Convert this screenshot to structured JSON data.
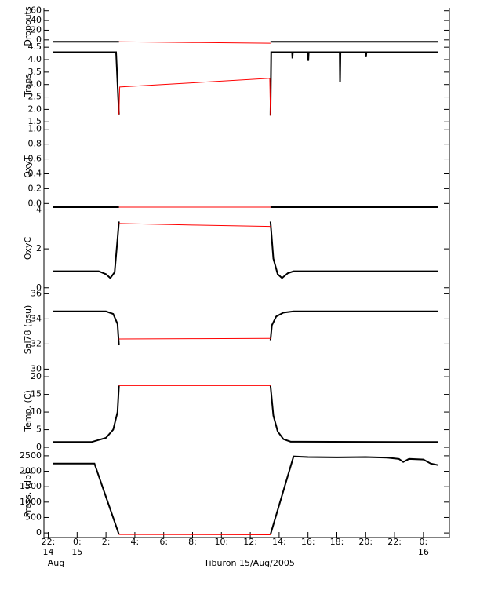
{
  "chart_data": [
    {
      "type": "line",
      "ylabel": "Dropouts",
      "xlim": [
        -2.3,
        25.8
      ],
      "ylim": [
        -10,
        66
      ],
      "yticks": [
        0,
        20,
        40,
        60
      ],
      "x": [
        -1.7,
        2.9,
        8,
        13.4,
        25
      ],
      "series": [
        {
          "color": "#000000",
          "values": [
            -4,
            -4,
            null,
            -4,
            -4
          ]
        },
        {
          "color": "#ff0000",
          "values": [
            null,
            -4,
            -5.5,
            -7,
            null
          ]
        }
      ]
    },
    {
      "type": "line",
      "ylabel": "Trans",
      "xlim": [
        -2.3,
        25.8
      ],
      "ylim": [
        1.35,
        4.6
      ],
      "yticks": [
        1.5,
        {
          "value": 2,
          "label": "2.0"
        },
        2.5,
        {
          "value": 3,
          "label": "3.0"
        },
        3.5,
        {
          "value": 4,
          "label": "4.0"
        },
        4.5
      ],
      "x": [
        -1.7,
        2.7,
        2.9,
        2.95,
        13.35,
        13.4,
        13.45,
        14.9,
        14.92,
        14.95,
        16.0,
        16.02,
        16.05,
        18.2,
        18.22,
        18.25,
        20.0,
        20.02,
        20.05,
        25
      ],
      "series": [
        {
          "color": "#000000",
          "values": [
            4.3,
            4.3,
            1.8,
            null,
            null,
            1.75,
            4.3,
            4.3,
            4.05,
            4.3,
            4.3,
            3.95,
            4.3,
            4.3,
            3.1,
            4.3,
            4.3,
            4.1,
            4.3,
            4.3
          ]
        },
        {
          "color": "#ff0000",
          "values": [
            null,
            null,
            1.8,
            2.9,
            3.25,
            1.75,
            null,
            null,
            null,
            null,
            null,
            null,
            null,
            null,
            null,
            null,
            null,
            null,
            null,
            null
          ]
        }
      ]
    },
    {
      "type": "line",
      "ylabel": "OxyT",
      "xlim": [
        -2.3,
        25.8
      ],
      "ylim": [
        -0.06,
        1.05
      ],
      "yticks": [
        {
          "value": 0,
          "label": "0.0"
        },
        0.2,
        0.4,
        0.6,
        0.8,
        {
          "value": 1,
          "label": "1.0"
        }
      ],
      "x": [
        -1.7,
        2.9,
        8,
        13.4,
        25
      ],
      "series": [
        {
          "color": "#000000",
          "values": [
            -0.05,
            -0.05,
            null,
            -0.05,
            -0.05
          ]
        },
        {
          "color": "#ff0000",
          "values": [
            null,
            -0.05,
            -0.05,
            -0.05,
            null
          ]
        }
      ]
    },
    {
      "type": "line",
      "ylabel": "OxyC",
      "xlim": [
        -2.3,
        25.8
      ],
      "ylim": [
        -0.05,
        4.1
      ],
      "yticks": [
        0,
        2,
        4
      ],
      "x": [
        -1.7,
        1.5,
        2.0,
        2.3,
        2.6,
        2.8,
        2.9,
        8,
        13.4,
        13.6,
        13.9,
        14.2,
        14.6,
        15.0,
        25
      ],
      "series": [
        {
          "color": "#000000",
          "values": [
            0.85,
            0.85,
            0.7,
            0.5,
            0.8,
            2.5,
            3.4,
            null,
            3.4,
            1.5,
            0.7,
            0.5,
            0.75,
            0.85,
            0.85
          ]
        },
        {
          "color": "#ff0000",
          "values": [
            null,
            null,
            null,
            null,
            null,
            null,
            3.3,
            3.22,
            3.15,
            null,
            null,
            null,
            null,
            null,
            null
          ]
        }
      ]
    },
    {
      "type": "line",
      "ylabel": "Sal78 (psu)",
      "xlim": [
        -2.3,
        25.8
      ],
      "ylim": [
        29.9,
        36.4
      ],
      "yticks": [
        30,
        32,
        34,
        36
      ],
      "x": [
        -1.7,
        2.0,
        2.5,
        2.8,
        2.9,
        8,
        13.4,
        13.5,
        13.8,
        14.3,
        15,
        25
      ],
      "series": [
        {
          "color": "#000000",
          "values": [
            34.6,
            34.6,
            34.4,
            33.6,
            31.9,
            null,
            32.3,
            33.5,
            34.2,
            34.5,
            34.6,
            34.6
          ]
        },
        {
          "color": "#ff0000",
          "values": [
            null,
            null,
            null,
            null,
            32.4,
            32.42,
            32.45,
            null,
            null,
            null,
            null,
            null
          ]
        }
      ]
    },
    {
      "type": "line",
      "ylabel": "Temp. (C)",
      "xlim": [
        -2.3,
        25.8
      ],
      "ylim": [
        -1.1,
        21.8
      ],
      "yticks": [
        0,
        5,
        10,
        15,
        20
      ],
      "x": [
        -1.7,
        1.0,
        2.0,
        2.5,
        2.8,
        2.9,
        8,
        13.4,
        13.6,
        13.9,
        14.3,
        14.8,
        25
      ],
      "series": [
        {
          "color": "#000000",
          "values": [
            1.5,
            1.5,
            2.7,
            5,
            10,
            17.5,
            null,
            17.5,
            9,
            4.5,
            2.3,
            1.6,
            1.5
          ]
        },
        {
          "color": "#ff0000",
          "values": [
            null,
            null,
            null,
            null,
            null,
            17.5,
            17.5,
            17.5,
            null,
            null,
            null,
            null,
            null
          ]
        }
      ]
    },
    {
      "type": "line",
      "ylabel": "Press. (db)",
      "xlabel": "Tiburon 15/Aug/2005",
      "xlim": [
        -2.3,
        25.8
      ],
      "ylim": [
        -150,
        2650
      ],
      "yticks": [
        0,
        500,
        1000,
        1500,
        2000,
        2500
      ],
      "xticks": [
        {
          "value": -2,
          "label": "22:"
        },
        {
          "value": 0,
          "label": "0:"
        },
        {
          "value": 2,
          "label": "2:"
        },
        {
          "value": 4,
          "label": "4:"
        },
        {
          "value": 6,
          "label": "6:"
        },
        {
          "value": 8,
          "label": "8:"
        },
        {
          "value": 10,
          "label": "10:"
        },
        {
          "value": 12,
          "label": "12:"
        },
        {
          "value": 14,
          "label": "14:"
        },
        {
          "value": 16,
          "label": "16:"
        },
        {
          "value": 18,
          "label": "18:"
        },
        {
          "value": 20,
          "label": "20:"
        },
        {
          "value": 22,
          "label": "22:"
        },
        {
          "value": 24,
          "label": "0:"
        }
      ],
      "xtick_days": [
        {
          "value": -2,
          "label": "14"
        },
        {
          "value": 0,
          "label": "15"
        },
        {
          "value": 24,
          "label": "16"
        }
      ],
      "month_label": "Aug",
      "x": [
        -1.7,
        1.2,
        2.9,
        8,
        13.4,
        15.0,
        16,
        18,
        20,
        21.5,
        22.3,
        22.6,
        23,
        24,
        24.5,
        25
      ],
      "series": [
        {
          "color": "#000000",
          "values": [
            2250,
            2250,
            -50,
            null,
            -50,
            2480,
            2460,
            2450,
            2460,
            2440,
            2400,
            2300,
            2400,
            2380,
            2250,
            2200
          ]
        },
        {
          "color": "#ff0000",
          "values": [
            null,
            null,
            -50,
            -55,
            -60,
            null,
            null,
            null,
            null,
            null,
            null,
            null,
            null,
            null,
            null,
            null
          ]
        }
      ]
    }
  ]
}
